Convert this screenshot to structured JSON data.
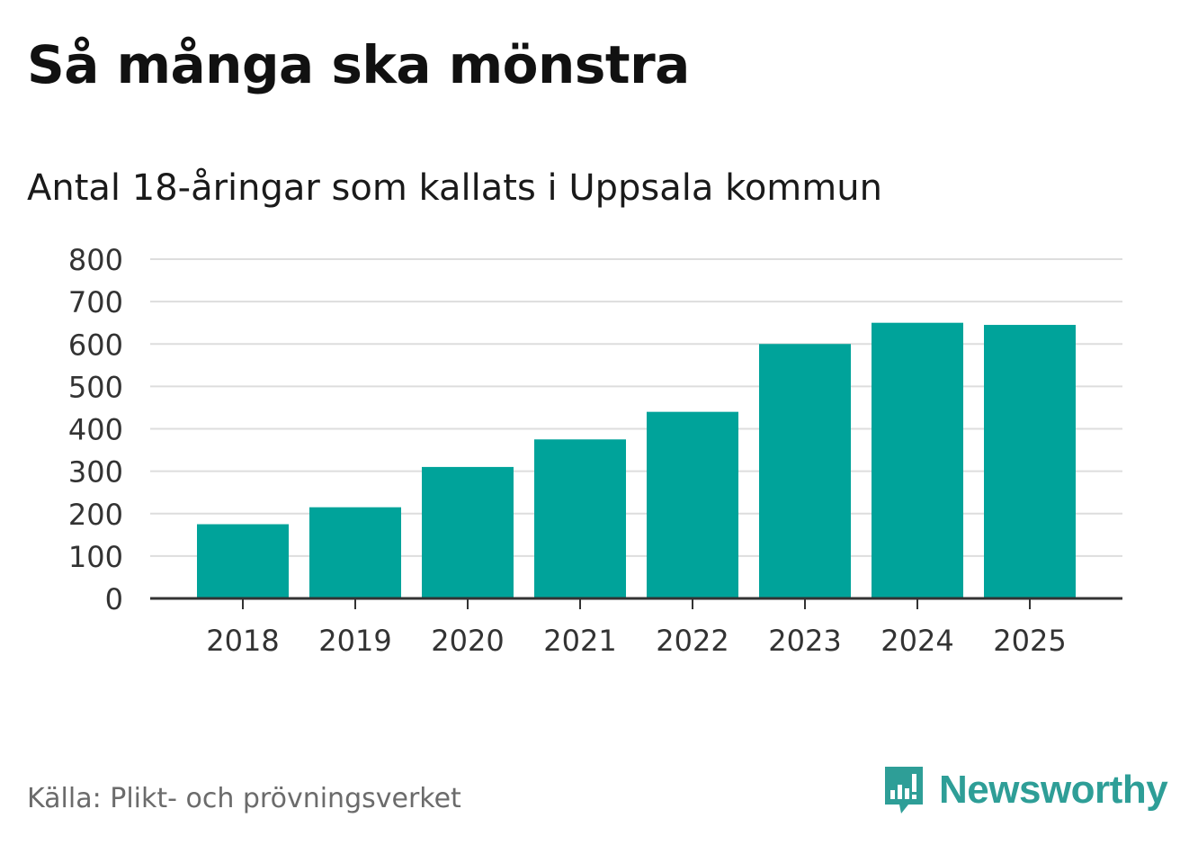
{
  "header": {
    "title": "Så många ska mönstra",
    "subtitle": "Antal 18-åringar som kallats i Uppsala kommun"
  },
  "footer": {
    "source": "Källa: Plikt- och prövningsverket",
    "brand": "Newsworthy"
  },
  "colors": {
    "bar": "#00a39a",
    "grid": "#dddddd",
    "axis": "#333333",
    "brand": "#2e9e97"
  },
  "chart_data": {
    "type": "bar",
    "title": "Så många ska mönstra",
    "subtitle": "Antal 18-åringar som kallats i Uppsala kommun",
    "categories": [
      "2018",
      "2019",
      "2020",
      "2021",
      "2022",
      "2023",
      "2024",
      "2025"
    ],
    "values": [
      175,
      215,
      310,
      375,
      440,
      600,
      650,
      645
    ],
    "xlabel": "",
    "ylabel": "",
    "ylim": [
      0,
      800
    ],
    "yticks": [
      0,
      100,
      200,
      300,
      400,
      500,
      600,
      700,
      800
    ],
    "grid": true
  }
}
